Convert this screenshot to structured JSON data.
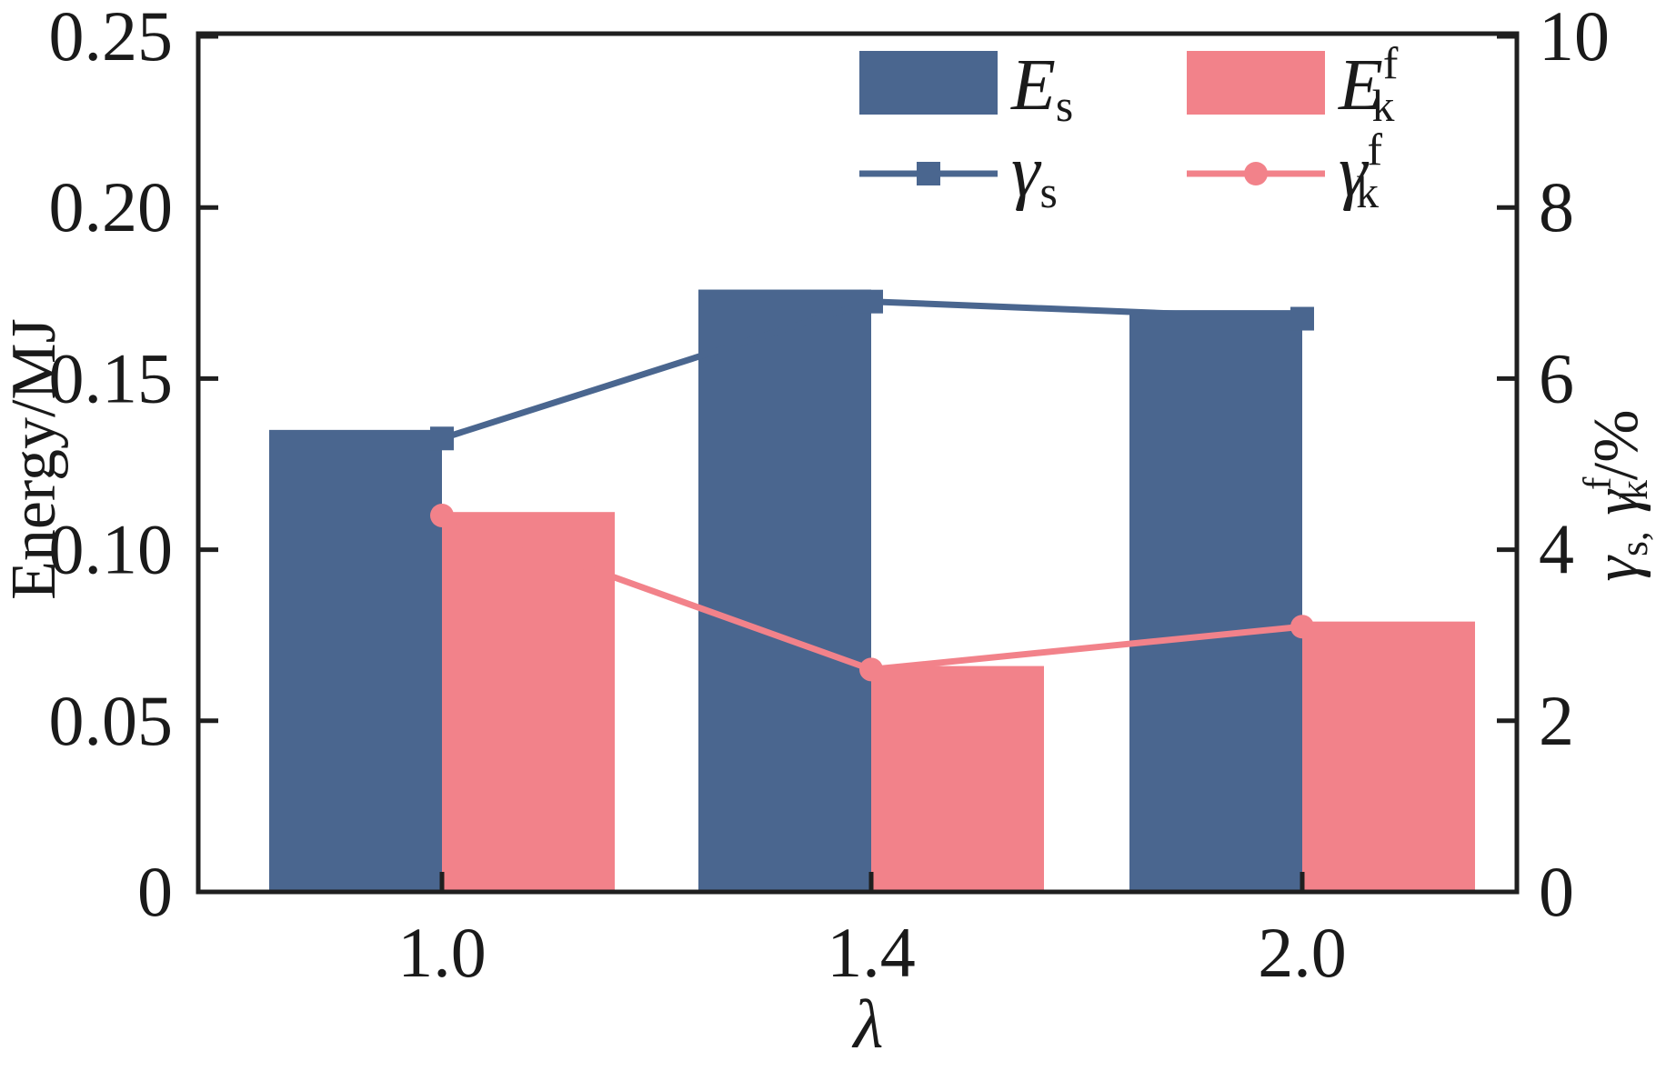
{
  "figure": {
    "background": "#ffffff",
    "frame_color": "#1f1f1f",
    "text_color": "#1a1a1a"
  },
  "chart_data": {
    "type": "bar",
    "subtype": "grouped-bars-with-dual-axis-line-overlay",
    "categories": [
      "1.0",
      "1.4",
      "2.0"
    ],
    "xlabel": "λ",
    "left_axis": {
      "label": "Energy/MJ",
      "min": 0,
      "max": 0.25,
      "ticks": [
        "0.25",
        "0.20",
        "0.15",
        "0.10",
        "0.05",
        "0"
      ],
      "tick_values": [
        0.25,
        0.2,
        0.15,
        0.1,
        0.05,
        0
      ]
    },
    "right_axis": {
      "label": "γs, γkf/%",
      "min": 0,
      "max": 10,
      "ticks": [
        "10",
        "8",
        "6",
        "4",
        "2",
        "0"
      ],
      "tick_values": [
        10,
        8,
        6,
        4,
        2,
        0
      ]
    },
    "bar_series": [
      {
        "name": "E_s",
        "axis": "left",
        "color": "#4A668F",
        "values": [
          0.135,
          0.176,
          0.17
        ]
      },
      {
        "name": "E_k^f",
        "axis": "left",
        "color": "#F2828A",
        "values": [
          0.111,
          0.066,
          0.079
        ]
      }
    ],
    "line_series": [
      {
        "name": "γ_s",
        "axis": "right",
        "color": "#4A668F",
        "marker": "square",
        "values": [
          5.3,
          6.9,
          6.7
        ]
      },
      {
        "name": "γ_k^f",
        "axis": "right",
        "color": "#F2828A",
        "marker": "circle",
        "values": [
          4.4,
          2.6,
          3.1
        ]
      }
    ],
    "legend": {
      "position": "top-inside",
      "entries": [
        "E_s",
        "E_k^f",
        "γ_s",
        "γ_k^f"
      ]
    },
    "grid": "off"
  },
  "rich_labels": {
    "es": [
      {
        "t": "E",
        "italic": true
      },
      {
        "t": "s",
        "pos": "sub"
      }
    ],
    "ekf": [
      {
        "t": "E",
        "italic": true
      },
      {
        "t": "f",
        "pos": "sup"
      },
      {
        "t": "k",
        "pos": "sub",
        "stack": true
      }
    ],
    "gs": [
      {
        "t": "γ",
        "italic": true
      },
      {
        "t": "s",
        "pos": "sub"
      }
    ],
    "gkf": [
      {
        "t": "γ",
        "italic": true
      },
      {
        "t": "f",
        "pos": "sup"
      },
      {
        "t": "k",
        "pos": "sub",
        "stack": true
      }
    ],
    "right_axis_label": [
      {
        "t": "γ",
        "italic": true
      },
      {
        "t": "s,",
        "pos": "sub"
      },
      {
        "t": " "
      },
      {
        "t": "γ",
        "italic": true
      },
      {
        "t": "f",
        "pos": "sup"
      },
      {
        "t": "k",
        "pos": "sub",
        "stack": true
      },
      {
        "t": "/%"
      }
    ],
    "left_axis_label": [
      {
        "t": "Energy/MJ"
      }
    ],
    "x_axis_label": [
      {
        "t": "λ",
        "italic": true
      }
    ]
  }
}
